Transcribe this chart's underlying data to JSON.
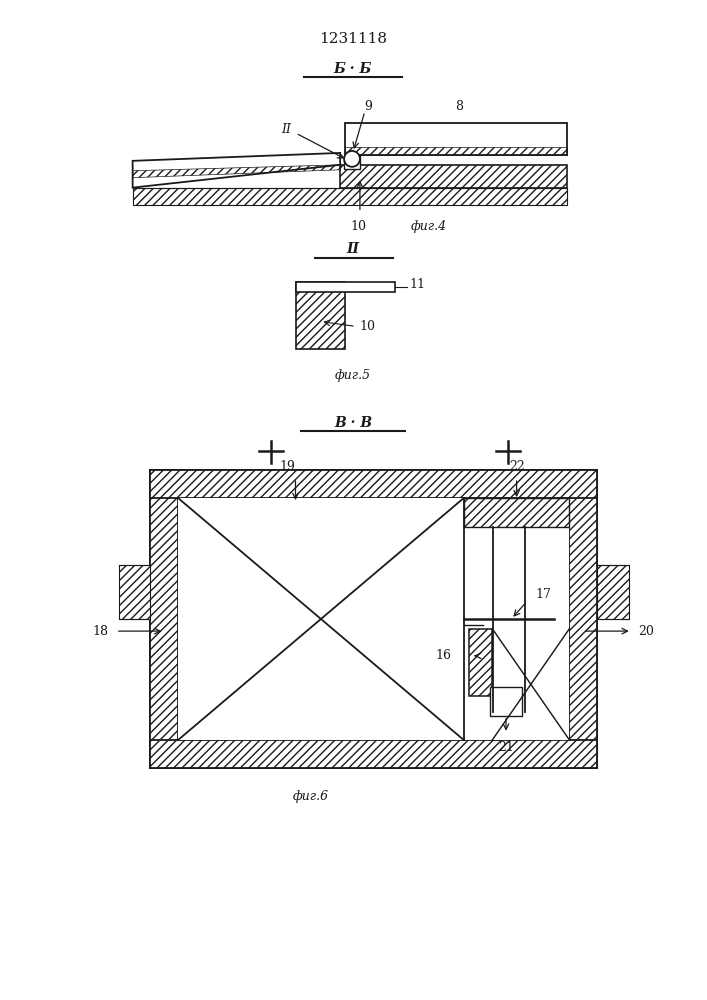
{
  "title": "1231118",
  "bg_color": "#ffffff",
  "line_color": "#1a1a1a",
  "fig4_section_label": "Б · Б",
  "fig4_caption": "фиг.4",
  "fig5_section_label": "ІІ",
  "fig5_caption": "фиг.5",
  "fig6_section_label": "В · В",
  "fig6_caption": "фиг.6"
}
